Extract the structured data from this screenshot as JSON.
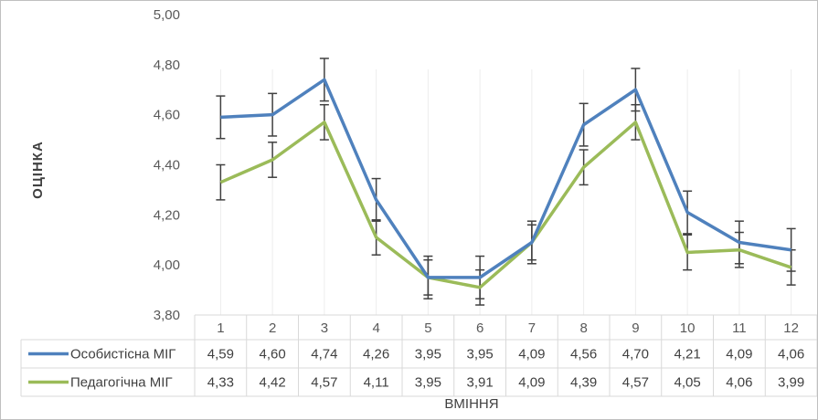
{
  "chart_data": {
    "type": "line",
    "ylabel": "ОЦІНКА",
    "xlabel": "ВМІННЯ",
    "ylim": [
      3.8,
      5.0
    ],
    "yticks": [
      "3,80",
      "4,00",
      "4,20",
      "4,40",
      "4,60",
      "4,80",
      "5,00"
    ],
    "ytick_values": [
      3.8,
      4.0,
      4.2,
      4.4,
      4.6,
      4.8,
      5.0
    ],
    "categories": [
      "1",
      "2",
      "3",
      "4",
      "5",
      "6",
      "7",
      "8",
      "9",
      "10",
      "11",
      "12"
    ],
    "grid": "vertical",
    "legend": "data-table",
    "series": [
      {
        "name": "Особистісна МІГ",
        "color": "#4f81bd",
        "values": [
          4.59,
          4.6,
          4.74,
          4.26,
          3.95,
          3.95,
          4.09,
          4.56,
          4.7,
          4.21,
          4.09,
          4.06
        ],
        "labels": [
          "4,59",
          "4,60",
          "4,74",
          "4,26",
          "3,95",
          "3,95",
          "4,09",
          "4,56",
          "4,70",
          "4,21",
          "4,09",
          "4,06"
        ],
        "error": 0.085
      },
      {
        "name": "Педагогічна МІГ",
        "color": "#9bbb59",
        "values": [
          4.33,
          4.42,
          4.57,
          4.11,
          3.95,
          3.91,
          4.09,
          4.39,
          4.57,
          4.05,
          4.06,
          3.99
        ],
        "labels": [
          "4,33",
          "4,42",
          "4,57",
          "4,11",
          "3,95",
          "3,91",
          "4,09",
          "4,39",
          "4,57",
          "4,05",
          "4,06",
          "3,99"
        ],
        "error": 0.07
      }
    ]
  }
}
